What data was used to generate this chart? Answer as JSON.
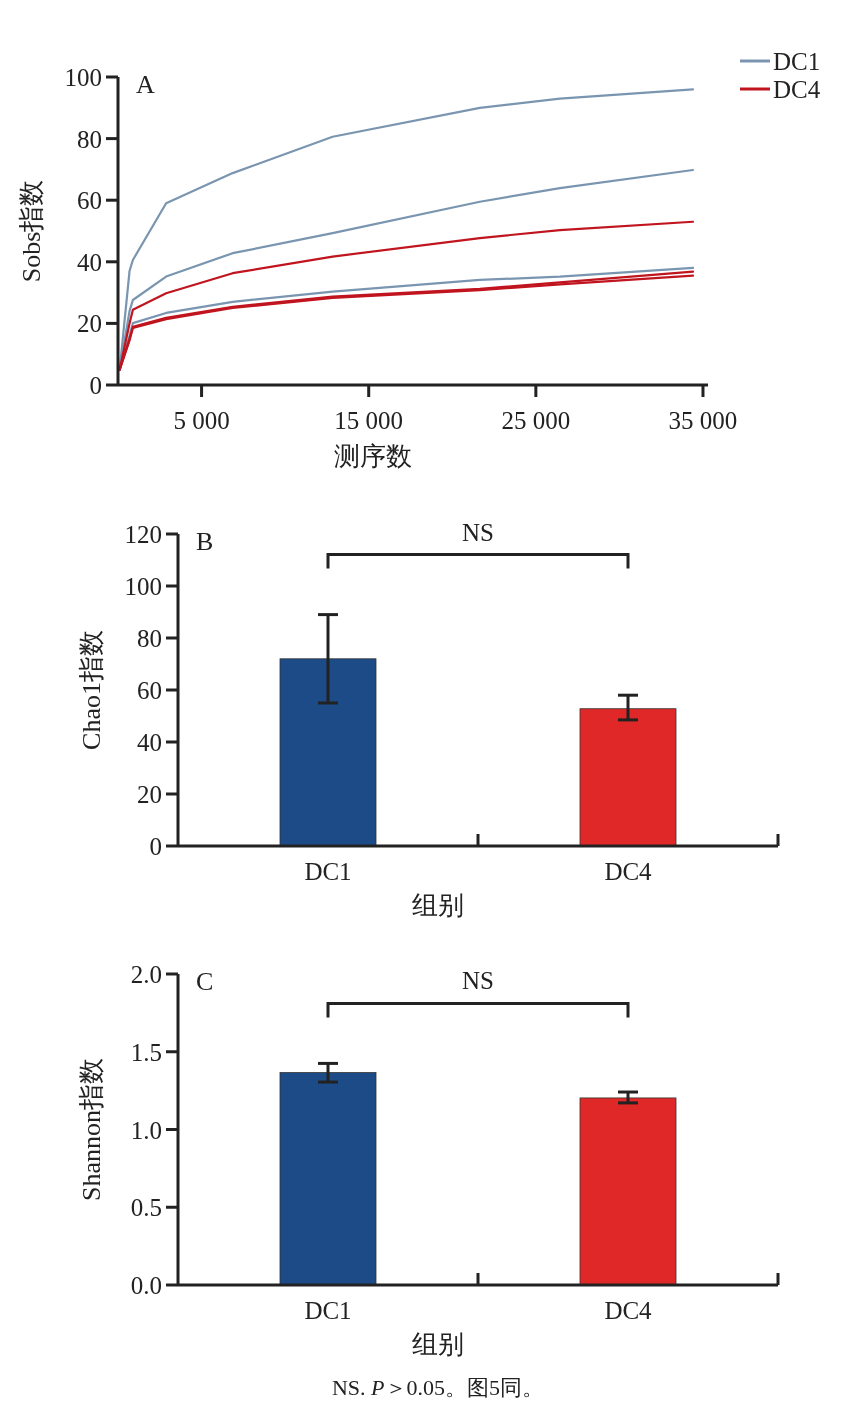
{
  "chart_data": [
    {
      "type": "line",
      "title": "A",
      "xlabel": "测序数",
      "ylabel": "Sobs指数",
      "legend": "top right",
      "xlim": [
        0,
        35300
      ],
      "ylim": [
        0,
        100
      ],
      "xticks": [
        {
          "value": 5000,
          "label": "5 000"
        },
        {
          "value": 15000,
          "label": "15 000"
        },
        {
          "value": 25000,
          "label": "25 000"
        },
        {
          "value": 35000,
          "label": "35 000"
        }
      ],
      "yticks": [
        0,
        20,
        40,
        60,
        80,
        100
      ],
      "series": [
        {
          "name": "DC1",
          "color": "#7a95b0",
          "x": [
            100,
            690,
            890,
            2880,
            6860,
            12840,
            21650,
            26440,
            34400
          ],
          "values": [
            5,
            37,
            40.6,
            59,
            68.8,
            80.6,
            90,
            93,
            96
          ]
        },
        {
          "color": "#7a95b0",
          "x": [
            100,
            690,
            890,
            2880,
            6860,
            12840,
            21650,
            26440,
            34400
          ],
          "values": [
            5,
            24,
            27.6,
            35.2,
            42.8,
            49.3,
            59.5,
            63.9,
            69.8
          ]
        },
        {
          "color": "#7a95b0",
          "x": [
            100,
            690,
            890,
            2880,
            6860,
            12840,
            21650,
            26440,
            34400
          ],
          "values": [
            5,
            16,
            20.1,
            23.4,
            27,
            30.3,
            34.1,
            35.2,
            38
          ]
        },
        {
          "name": "DC4",
          "color": "#c0141e",
          "x": [
            100,
            690,
            890,
            2880,
            6860,
            12840,
            21650,
            26440,
            34400
          ],
          "values": [
            5,
            20,
            24.4,
            29.8,
            36.3,
            41.7,
            47.7,
            50.3,
            53
          ]
        },
        {
          "color": "#c0141e",
          "x": [
            100,
            690,
            890,
            2880,
            6860,
            12840,
            21650,
            26440,
            34400
          ],
          "values": [
            5,
            15,
            18.9,
            21.8,
            25.4,
            28.7,
            31.2,
            33.3,
            36.8
          ]
        },
        {
          "color": "#c0141e",
          "x": [
            100,
            690,
            890,
            2880,
            6860,
            12840,
            21650,
            26440,
            34400
          ],
          "values": [
            5,
            14.5,
            18.5,
            21.4,
            25,
            28.3,
            30.8,
            32.7,
            35.5
          ]
        }
      ]
    },
    {
      "type": "bar",
      "title": "B",
      "xlabel": "组别",
      "ylabel": "Chao1指数",
      "categories": [
        "DC1",
        "DC4"
      ],
      "values": [
        72,
        52.8
      ],
      "colors": [
        "#1c4b87",
        "#e02828"
      ],
      "errors": [
        [
          55,
          89
        ],
        [
          48.5,
          58
        ]
      ],
      "ylim": [
        0,
        120
      ],
      "yticks": [
        0,
        20,
        40,
        60,
        80,
        100,
        120
      ],
      "annotations": [
        "NS"
      ]
    },
    {
      "type": "bar",
      "title": "C",
      "xlabel": "组别",
      "ylabel": "Shannon指数",
      "categories": [
        "DC1",
        "DC4"
      ],
      "values": [
        1.366,
        1.203
      ],
      "colors": [
        "#1c4b87",
        "#e02828"
      ],
      "errors": [
        [
          1.305,
          1.425
        ],
        [
          1.171,
          1.241
        ]
      ],
      "ylim": [
        0,
        2
      ],
      "yticks": [
        {
          "value": 0,
          "label": "0.0"
        },
        {
          "value": 0.5,
          "label": "0.5"
        },
        {
          "value": 1,
          "label": "1.0"
        },
        {
          "value": 1.5,
          "label": "1.5"
        },
        {
          "value": 2,
          "label": "2.0"
        }
      ],
      "annotations": [
        "NS",
        "NS. *P*＞0.05。图5同。"
      ]
    }
  ]
}
